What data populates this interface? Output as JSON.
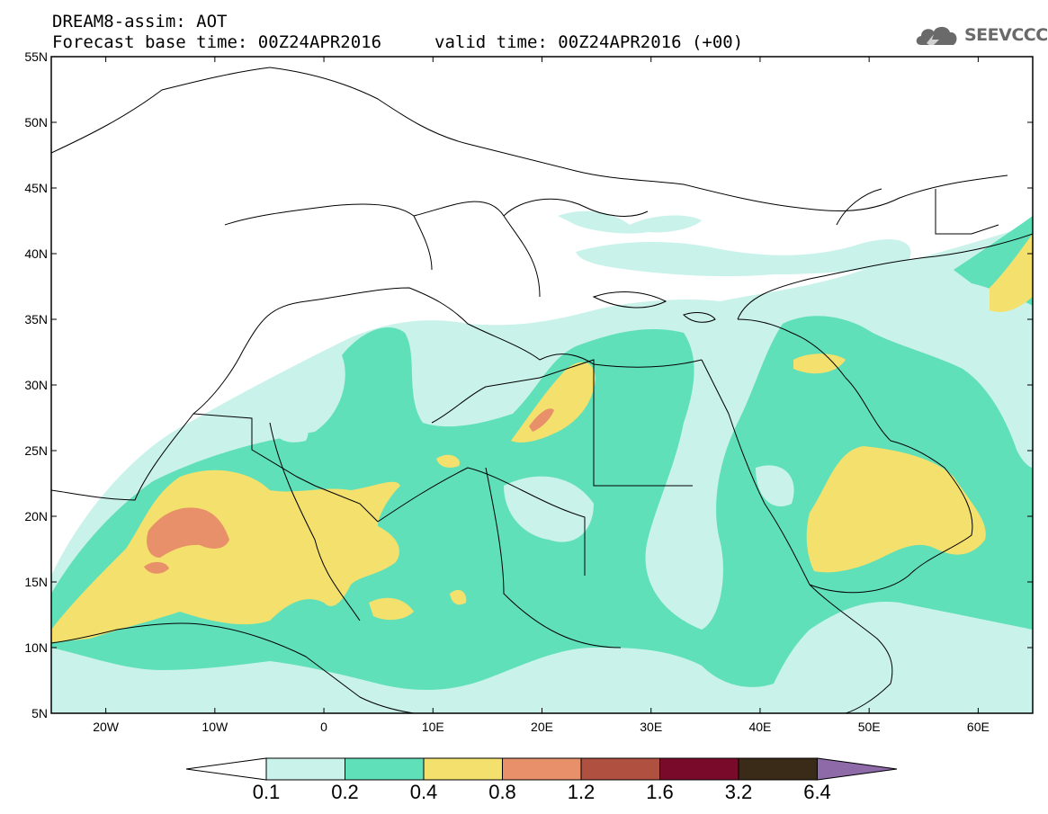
{
  "title": {
    "line1": "DREAM8-assim: AOT",
    "line2": "Forecast base time: 00Z24APR2016",
    "valid": "valid time: 00Z24APR2016 (+00)"
  },
  "logo": {
    "text": "SEEVCCC",
    "icon": "cloud-icon"
  },
  "map": {
    "lon_range": [
      -25,
      65
    ],
    "lat_range": [
      5,
      55
    ],
    "lon_ticks": [
      "20W",
      "10W",
      "0",
      "10E",
      "20E",
      "30E",
      "40E",
      "50E",
      "60E"
    ],
    "lat_ticks": [
      "5N",
      "10N",
      "15N",
      "20N",
      "25N",
      "30N",
      "35N",
      "40N",
      "45N",
      "50N",
      "55N"
    ],
    "colors": {
      "c01": "#c8f2ea",
      "c02": "#5fe0b8",
      "c04": "#f4e06c",
      "c08": "#e8906a",
      "c12": "#b05040",
      "c16": "#7a0a2a",
      "c32": "#3a2a18",
      "c64": "#8e6aa8",
      "coast": "#000000"
    }
  },
  "colorbar": {
    "labels": [
      "0.1",
      "0.2",
      "0.4",
      "0.8",
      "1.2",
      "1.6",
      "3.2",
      "6.4"
    ]
  }
}
